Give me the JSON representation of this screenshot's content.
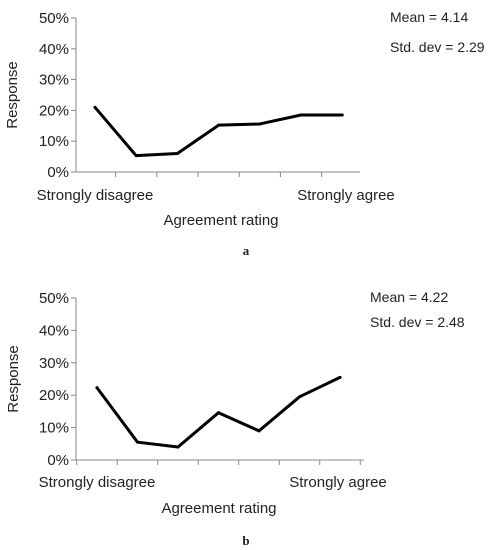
{
  "chart_data": [
    {
      "type": "line",
      "panel_label": "a",
      "xlabel": "Agreement rating",
      "ylabel": "Response",
      "x_tick_labels": {
        "left": "Strongly disagree",
        "right": "Strongly agree"
      },
      "x": [
        1,
        2,
        3,
        4,
        5,
        6,
        7
      ],
      "values": [
        21,
        5.3,
        6,
        15.2,
        15.6,
        18.5,
        18.5
      ],
      "ylim": [
        0,
        50
      ],
      "y_ticks": [
        "0%",
        "10%",
        "20%",
        "30%",
        "40%",
        "50%"
      ],
      "annotations": [
        "Mean = 4.14",
        "Std. dev = 2.29"
      ],
      "grid": false,
      "line_color": "#000000"
    },
    {
      "type": "line",
      "panel_label": "b",
      "xlabel": "Agreement rating",
      "ylabel": "Response",
      "x_tick_labels": {
        "left": "Strongly disagree",
        "right": "Strongly agree"
      },
      "x": [
        1,
        2,
        3,
        4,
        5,
        6,
        7
      ],
      "values": [
        22.3,
        5.5,
        4,
        14.6,
        9,
        19.5,
        25.5
      ],
      "ylim": [
        0,
        50
      ],
      "y_ticks": [
        "0%",
        "10%",
        "20%",
        "30%",
        "40%",
        "50%"
      ],
      "annotations": [
        "Mean = 4.22",
        "Std. dev = 2.48"
      ],
      "grid": false,
      "line_color": "#000000"
    }
  ]
}
